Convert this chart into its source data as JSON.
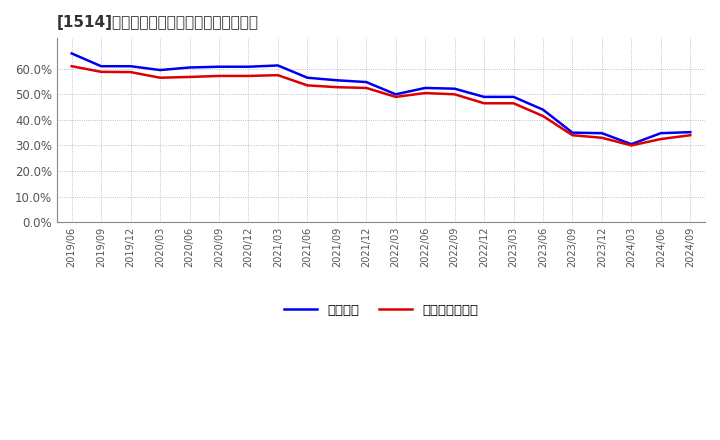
{
  "title": "[1514]　固定比率、固定長期適合率の推移",
  "legend_labels": [
    "固定比率",
    "固定長期適合率"
  ],
  "line_colors": [
    "#0000ee",
    "#dd0000"
  ],
  "line_width": 1.8,
  "background_color": "#ffffff",
  "plot_bg_color": "#ffffff",
  "grid_color": "#aaaacc",
  "ylim": [
    0.0,
    0.72
  ],
  "yticks": [
    0.0,
    0.1,
    0.2,
    0.3,
    0.4,
    0.5,
    0.6
  ],
  "x_labels": [
    "2019/06",
    "2019/09",
    "2019/12",
    "2020/03",
    "2020/06",
    "2020/09",
    "2020/12",
    "2021/03",
    "2021/06",
    "2021/09",
    "2021/12",
    "2022/03",
    "2022/06",
    "2022/09",
    "2022/12",
    "2023/03",
    "2023/06",
    "2023/09",
    "2023/12",
    "2024/03",
    "2024/06",
    "2024/09"
  ],
  "fixed_ratio": [
    0.66,
    0.61,
    0.61,
    0.595,
    0.605,
    0.608,
    0.608,
    0.613,
    0.565,
    0.555,
    0.548,
    0.5,
    0.525,
    0.522,
    0.49,
    0.49,
    0.44,
    0.35,
    0.348,
    0.305,
    0.348,
    0.352
  ],
  "fixed_longterm_ratio": [
    0.61,
    0.588,
    0.587,
    0.565,
    0.568,
    0.572,
    0.572,
    0.575,
    0.535,
    0.528,
    0.525,
    0.49,
    0.505,
    0.5,
    0.465,
    0.465,
    0.415,
    0.34,
    0.33,
    0.3,
    0.325,
    0.34
  ],
  "title_color": "#333333",
  "tick_color": "#555555"
}
